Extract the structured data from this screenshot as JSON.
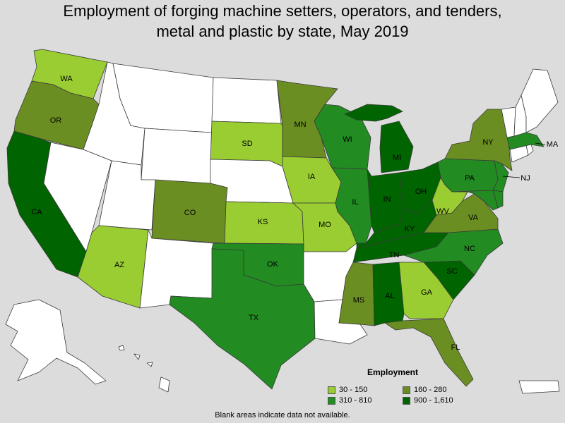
{
  "title_lines": [
    "Employment of forging machine setters, operators, and tenders,",
    "metal and plastic by state, May 2019"
  ],
  "legend": {
    "title": "Employment",
    "items": [
      {
        "label": "30 - 150",
        "color": "#9acd32"
      },
      {
        "label": "160 - 280",
        "color": "#6b8e23"
      },
      {
        "label": "310 - 810",
        "color": "#228b22"
      },
      {
        "label": "900 - 1,610",
        "color": "#006400"
      }
    ]
  },
  "no_data_color": "#ffffff",
  "footnote": "Blank areas indicate data not available.",
  "states": [
    {
      "abbr": "WA",
      "category": 0
    },
    {
      "abbr": "OR",
      "category": 1
    },
    {
      "abbr": "CA",
      "category": 3
    },
    {
      "abbr": "AZ",
      "category": 0
    },
    {
      "abbr": "CO",
      "category": 1
    },
    {
      "abbr": "SD",
      "category": 0
    },
    {
      "abbr": "MN",
      "category": 1
    },
    {
      "abbr": "IA",
      "category": 0
    },
    {
      "abbr": "KS",
      "category": 0
    },
    {
      "abbr": "MO",
      "category": 0
    },
    {
      "abbr": "OK",
      "category": 2
    },
    {
      "abbr": "TX",
      "category": 2
    },
    {
      "abbr": "WI",
      "category": 2
    },
    {
      "abbr": "IL",
      "category": 2
    },
    {
      "abbr": "MI",
      "category": 3
    },
    {
      "abbr": "IN",
      "category": 3
    },
    {
      "abbr": "OH",
      "category": 3
    },
    {
      "abbr": "KY",
      "category": 3
    },
    {
      "abbr": "TN",
      "category": 3
    },
    {
      "abbr": "MS",
      "category": 1
    },
    {
      "abbr": "AL",
      "category": 3
    },
    {
      "abbr": "GA",
      "category": 0
    },
    {
      "abbr": "FL",
      "category": 1
    },
    {
      "abbr": "SC",
      "category": 3
    },
    {
      "abbr": "NC",
      "category": 2
    },
    {
      "abbr": "VA",
      "category": 1
    },
    {
      "abbr": "WV",
      "category": 0
    },
    {
      "abbr": "PA",
      "category": 2
    },
    {
      "abbr": "NY",
      "category": 1
    },
    {
      "abbr": "NJ",
      "category": 2
    },
    {
      "abbr": "MA",
      "category": 2
    },
    {
      "abbr": "MD",
      "category": 2
    },
    {
      "abbr": "DE",
      "category": 2
    },
    {
      "abbr": "CT",
      "category": null
    },
    {
      "abbr": "RI",
      "category": null
    },
    {
      "abbr": "VT",
      "category": null
    },
    {
      "abbr": "NH",
      "category": null
    },
    {
      "abbr": "ME",
      "category": null
    },
    {
      "abbr": "ID",
      "category": null
    },
    {
      "abbr": "MT",
      "category": null
    },
    {
      "abbr": "WY",
      "category": null
    },
    {
      "abbr": "NV",
      "category": null
    },
    {
      "abbr": "UT",
      "category": null
    },
    {
      "abbr": "NM",
      "category": null
    },
    {
      "abbr": "ND",
      "category": null
    },
    {
      "abbr": "NE",
      "category": null
    },
    {
      "abbr": "AR",
      "category": null
    },
    {
      "abbr": "LA",
      "category": null
    },
    {
      "abbr": "AK",
      "category": null
    },
    {
      "abbr": "HI",
      "category": null
    },
    {
      "abbr": "PR",
      "category": null
    }
  ]
}
